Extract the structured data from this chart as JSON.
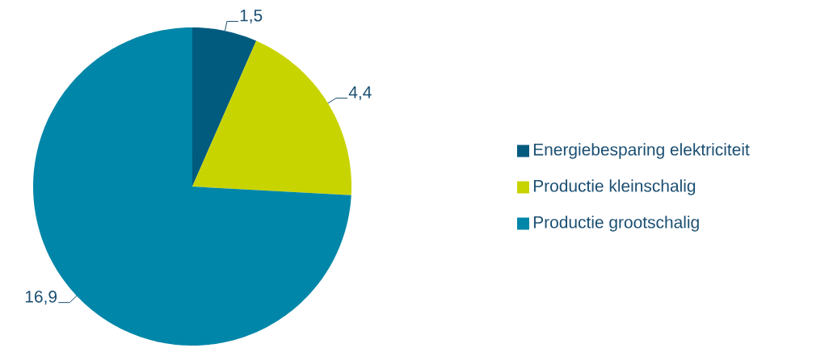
{
  "chart_data": {
    "type": "pie",
    "categories": [
      "Energiebesparing elektriciteit",
      "Productie  kleinschalig",
      "Productie grootschalig"
    ],
    "values": [
      1.5,
      4.4,
      16.9
    ],
    "value_labels": [
      "1,5",
      "4,4",
      "16,9"
    ],
    "colors": [
      "#005b7f",
      "#c8d400",
      "#0086a8"
    ],
    "legend": "right"
  }
}
